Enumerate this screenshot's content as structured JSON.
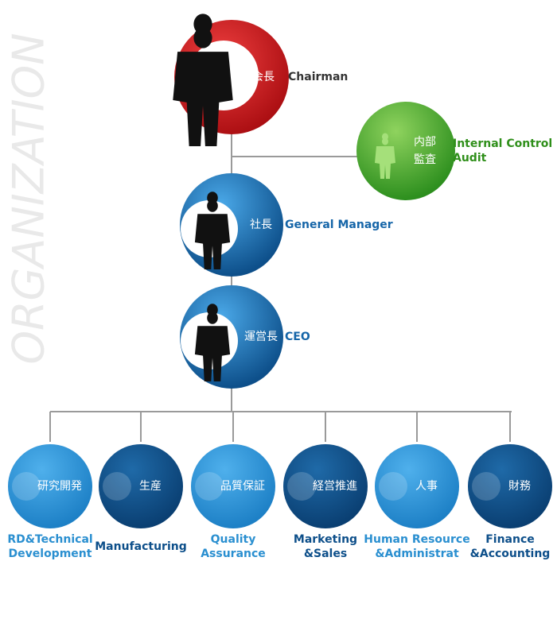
{
  "side_title": "ORGANIZATION",
  "top_nodes": [
    {
      "jp": [
        "会長"
      ],
      "en": [
        "Chairman"
      ]
    },
    {
      "jp": [
        "内部",
        "監査"
      ],
      "en": [
        "Internal Control",
        "Audit"
      ]
    },
    {
      "jp": [
        "社長"
      ],
      "en": [
        "General Manager"
      ]
    },
    {
      "jp": [
        "運営長"
      ],
      "en": [
        "CEO"
      ]
    }
  ],
  "departments": [
    {
      "jp": "研究開発",
      "en": [
        "RD&Technical",
        "Development"
      ]
    },
    {
      "jp": "生産",
      "en": [
        "Manufacturing"
      ]
    },
    {
      "jp": "品質保証",
      "en": [
        "Quality",
        "Assurance"
      ]
    },
    {
      "jp": "経営推進",
      "en": [
        "Marketing",
        "&Sales"
      ]
    },
    {
      "jp": "人事",
      "en": [
        "Human Resource",
        "&Administrat"
      ]
    },
    {
      "jp": "財務",
      "en": [
        "Finance",
        "&Accounting"
      ]
    }
  ]
}
